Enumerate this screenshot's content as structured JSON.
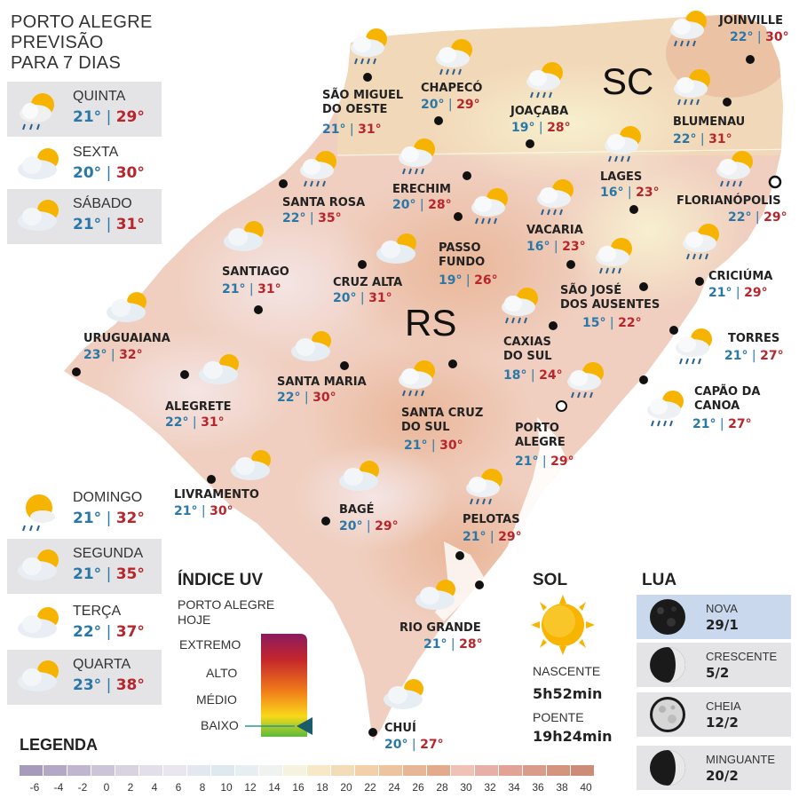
{
  "header": {
    "line1": "PORTO ALEGRE",
    "line2": "PREVISÃO",
    "line3": "PARA 7 DIAS"
  },
  "forecast": [
    {
      "day": "QUINTA",
      "min": "21°",
      "max": "29°",
      "icon": "sun-cloud-rain-icon"
    },
    {
      "day": "SEXTA",
      "min": "20°",
      "max": "30°",
      "icon": "cloud-sun-icon"
    },
    {
      "day": "SÁBADO",
      "min": "21°",
      "max": "31°",
      "icon": "cloud-sun-icon"
    },
    {
      "day": "DOMINGO",
      "min": "21°",
      "max": "32°",
      "icon": "sun-rain-icon"
    },
    {
      "day": "SEGUNDA",
      "min": "21°",
      "max": "35°",
      "icon": "cloud-sun-icon"
    },
    {
      "day": "TERÇA",
      "min": "22°",
      "max": "37°",
      "icon": "cloud-sun-icon"
    },
    {
      "day": "QUARTA",
      "min": "23°",
      "max": "38°",
      "icon": "cloud-sun-icon"
    }
  ],
  "states": {
    "sc": "SC",
    "rs": "RS"
  },
  "cities": [
    {
      "name": [
        "SÃO MIGUEL",
        "DO OESTE"
      ],
      "min": "21°",
      "max": "31°"
    },
    {
      "name": [
        "CHAPECÓ"
      ],
      "min": "20°",
      "max": "29°"
    },
    {
      "name": [
        "JOAÇABA"
      ],
      "min": "19°",
      "max": "28°"
    },
    {
      "name": [
        "JOINVILLE"
      ],
      "min": "22°",
      "max": "30°"
    },
    {
      "name": [
        "BLUMENAU"
      ],
      "min": "22°",
      "max": "31°"
    },
    {
      "name": [
        "LAGES"
      ],
      "min": "16°",
      "max": "23°"
    },
    {
      "name": [
        "FLORIANÓPOLIS"
      ],
      "min": "22°",
      "max": "29°"
    },
    {
      "name": [
        "SANTA ROSA"
      ],
      "min": "22°",
      "max": "35°"
    },
    {
      "name": [
        "ERECHIM"
      ],
      "min": "20°",
      "max": "28°"
    },
    {
      "name": [
        "VACARIA"
      ],
      "min": "16°",
      "max": "23°"
    },
    {
      "name": [
        "PASSO",
        "FUNDO"
      ],
      "min": "19°",
      "max": "26°"
    },
    {
      "name": [
        "CRICIÚMA"
      ],
      "min": "21°",
      "max": "29°"
    },
    {
      "name": [
        "SANTIAGO"
      ],
      "min": "21°",
      "max": "31°"
    },
    {
      "name": [
        "CRUZ ALTA"
      ],
      "min": "20°",
      "max": "31°"
    },
    {
      "name": [
        "SÃO JOSÉ",
        "DOS AUSENTES"
      ],
      "min": "15°",
      "max": "22°"
    },
    {
      "name": [
        "URUGUAIANA"
      ],
      "min": "23°",
      "max": "32°"
    },
    {
      "name": [
        "CAXIAS",
        "DO SUL"
      ],
      "min": "18°",
      "max": "24°"
    },
    {
      "name": [
        "TORRES"
      ],
      "min": "21°",
      "max": "27°"
    },
    {
      "name": [
        "SANTA MARIA"
      ],
      "min": "22°",
      "max": "30°"
    },
    {
      "name": [
        "ALEGRETE"
      ],
      "min": "22°",
      "max": "31°"
    },
    {
      "name": [
        "CAPÃO DA",
        "CANOA"
      ],
      "min": "21°",
      "max": "27°"
    },
    {
      "name": [
        "SANTA CRUZ",
        "DO SUL"
      ],
      "min": "21°",
      "max": "30°"
    },
    {
      "name": [
        "PORTO",
        "ALEGRE"
      ],
      "min": "21°",
      "max": "29°"
    },
    {
      "name": [
        "LIVRAMENTO"
      ],
      "min": "21°",
      "max": "30°"
    },
    {
      "name": [
        "BAGÉ"
      ],
      "min": "20°",
      "max": "29°"
    },
    {
      "name": [
        "PELOTAS"
      ],
      "min": "21°",
      "max": "29°"
    },
    {
      "name": [
        "RIO GRANDE"
      ],
      "min": "21°",
      "max": "28°"
    },
    {
      "name": [
        "CHUÍ"
      ],
      "min": "20°",
      "max": "27°"
    }
  ],
  "uv": {
    "title": "ÍNDICE UV",
    "subtitle1": "PORTO ALEGRE",
    "subtitle2": "HOJE",
    "levels": [
      "EXTREMO",
      "ALTO",
      "MÉDIO",
      "BAIXO"
    ],
    "current_level": "BAIXO"
  },
  "sun": {
    "title": "SOL",
    "rise_label": "NASCENTE",
    "rise_time": "5h52min",
    "set_label": "POENTE",
    "set_time": "19h24min"
  },
  "moon": {
    "title": "LUA",
    "phases": [
      {
        "name": "NOVA",
        "date": "29/1",
        "icon": "new-moon-icon",
        "highlight": true
      },
      {
        "name": "CRESCENTE",
        "date": "5/2",
        "icon": "waxing-moon-icon",
        "highlight": false
      },
      {
        "name": "CHEIA",
        "date": "12/2",
        "icon": "full-moon-icon",
        "highlight": false
      },
      {
        "name": "MINGUANTE",
        "date": "20/2",
        "icon": "waning-moon-icon",
        "highlight": false
      }
    ]
  },
  "legend": {
    "title": "LEGENDA",
    "values": [
      "-6",
      "-4",
      "-2",
      "0",
      "2",
      "4",
      "6",
      "8",
      "10",
      "12",
      "14",
      "16",
      "18",
      "20",
      "22",
      "24",
      "26",
      "28",
      "30",
      "32",
      "34",
      "36",
      "38",
      "40"
    ],
    "colors": [
      "#a79bbd",
      "#b3a8c6",
      "#c0b6cf",
      "#ccc4d8",
      "#d8d2e1",
      "#e3dfea",
      "#e9e6f0",
      "#e3e7f0",
      "#dde8ef",
      "#e5eef0",
      "#eef3ef",
      "#f6f2e0",
      "#f7e8c8",
      "#f5dcb9",
      "#f1d0aa",
      "#eec3a0",
      "#e7b696",
      "#e3aa8e",
      "#f0c2b5",
      "#e7b0a6",
      "#e0a396",
      "#d99c8a",
      "#d4957f",
      "#cc8c78"
    ]
  },
  "colors": {
    "temp_min": "#2a78a8",
    "temp_max": "#b8262c",
    "rs_land": "#f0cfc0",
    "sc_land": "#f5e6c6",
    "sea": "#ffffff"
  }
}
